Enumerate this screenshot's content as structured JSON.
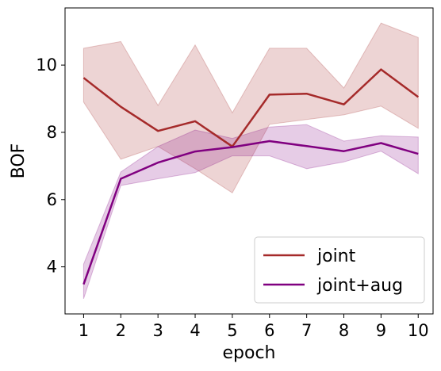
{
  "chart_data": {
    "type": "line",
    "xlabel": "epoch",
    "ylabel": "BOF",
    "xlim": [
      0.5,
      10.4
    ],
    "ylim": [
      2.6,
      11.7
    ],
    "x": [
      1,
      2,
      3,
      4,
      5,
      6,
      7,
      8,
      9,
      10
    ],
    "xticks": [
      1,
      2,
      3,
      4,
      5,
      6,
      7,
      8,
      9,
      10
    ],
    "yticks": [
      4,
      6,
      8,
      10
    ],
    "grid": false,
    "legend_position": "bottom-right",
    "series": [
      {
        "name": "joint",
        "color": "#a52a2a",
        "values": [
          9.62,
          8.76,
          8.04,
          8.33,
          7.58,
          9.12,
          9.15,
          8.83,
          9.87,
          9.05
        ],
        "band_lower": [
          8.9,
          7.2,
          7.58,
          6.92,
          6.2,
          8.24,
          8.38,
          8.52,
          8.78,
          8.12
        ],
        "band_upper": [
          10.5,
          10.7,
          8.8,
          10.6,
          8.58,
          10.5,
          10.5,
          9.32,
          11.25,
          10.82
        ]
      },
      {
        "name": "joint+aug",
        "color": "#800080",
        "values": [
          3.48,
          6.62,
          7.1,
          7.43,
          7.56,
          7.74,
          7.59,
          7.44,
          7.68,
          7.36
        ],
        "band_lower": [
          3.05,
          6.42,
          6.62,
          6.8,
          7.3,
          7.3,
          6.92,
          7.12,
          7.44,
          6.77
        ],
        "band_upper": [
          4.08,
          6.82,
          7.58,
          8.07,
          7.82,
          8.16,
          8.23,
          7.74,
          7.9,
          7.86
        ]
      }
    ]
  }
}
